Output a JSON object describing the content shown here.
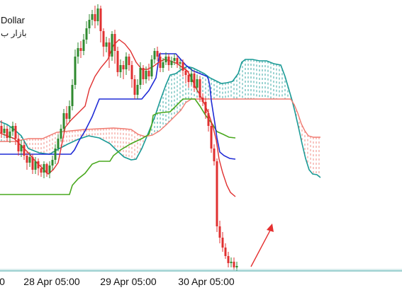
{
  "chart": {
    "title_fragment": "Dollar",
    "subtitle_fragment": "بازار ب"
  },
  "chart_data": {
    "type": "candlestick",
    "indicator": "Ichimoku Kinko Hyo",
    "x_ticks": [
      "0",
      "28 Apr 05:00",
      "29 Apr 05:00",
      "30 Apr 05:00"
    ],
    "grid": false,
    "colors": {
      "bull_candle": "#2f8a2f",
      "bear_candle": "#e03030",
      "tenkan_sen": "#e03030",
      "kijun_sen": "#1f2bd6",
      "chikou_span": "#49a81e",
      "senkou_a": "#1a9a96",
      "senkou_b": "#f07a70",
      "arrow": "#e53030"
    },
    "series": [
      {
        "name": "candles",
        "values": []
      },
      {
        "name": "tenkan_sen",
        "values": []
      },
      {
        "name": "kijun_sen",
        "values": []
      },
      {
        "name": "chikou_span",
        "values": []
      },
      {
        "name": "senkou_span_a",
        "values": []
      },
      {
        "name": "senkou_span_b",
        "values": []
      }
    ]
  }
}
